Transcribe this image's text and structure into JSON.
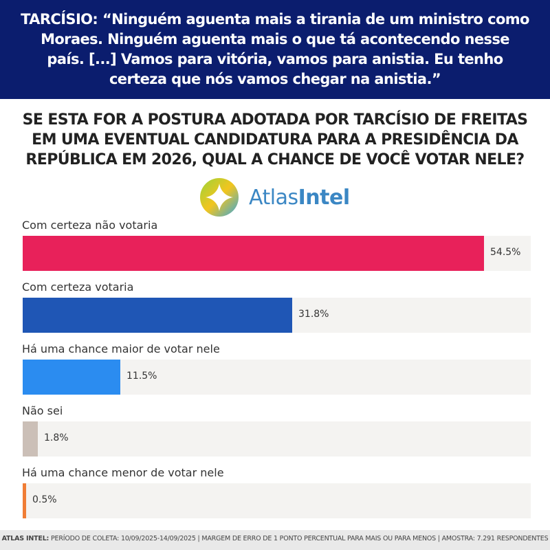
{
  "header": {
    "speaker": "TARCÍSIO:",
    "quote": "“Ninguém aguenta mais a tirania de um ministro como Moraes. Ninguém aguenta mais o que tá acontecendo nesse país. [...] Vamos para vitória, vamos para anistia. Eu tenho certeza que nós vamos chegar na anistia.”"
  },
  "question": {
    "line1": "SE ESTA FOR A POSTURA ADOTADA POR TARCÍSIO DE FREITAS",
    "line2": "EM UMA EVENTUAL CANDIDATURA PARA A PRESIDÊNCIA DA",
    "line3": "REPÚBLICA EM 2026, QUAL A CHANCE DE VOCÊ VOTAR NELE?"
  },
  "logo": {
    "part1": "Atlas",
    "part2": "Intel",
    "icon": "atlasintel-logo-icon"
  },
  "colors": {
    "header_bg": "#0b1d6e",
    "track": "#f4f3f1"
  },
  "chart_data": {
    "type": "bar",
    "orientation": "horizontal",
    "xlim": [
      0,
      60
    ],
    "categories": [
      "Com certeza não votaria",
      "Com certeza votaria",
      "Há uma chance maior de votar nele",
      "Não sei",
      "Há uma chance menor de votar nele"
    ],
    "values": [
      54.5,
      31.8,
      11.5,
      1.8,
      0.5
    ],
    "value_labels": [
      "54.5%",
      "31.8%",
      "11.5%",
      "1.8%",
      "0.5%"
    ],
    "colors": [
      "#e8215a",
      "#1f56b5",
      "#2b8cf0",
      "#cbbfb7",
      "#f07d35"
    ],
    "grid": false,
    "legend": "none"
  },
  "footer": {
    "source": "ATLAS INTEL:",
    "text": "PERÍODO DE COLETA: 10/09/2025-14/09/2025 | MARGEM DE ERRO DE 1 PONTO PERCENTUAL PARA MAIS OU PARA MENOS | AMOSTRA: 7.291 RESPONDENTES"
  }
}
